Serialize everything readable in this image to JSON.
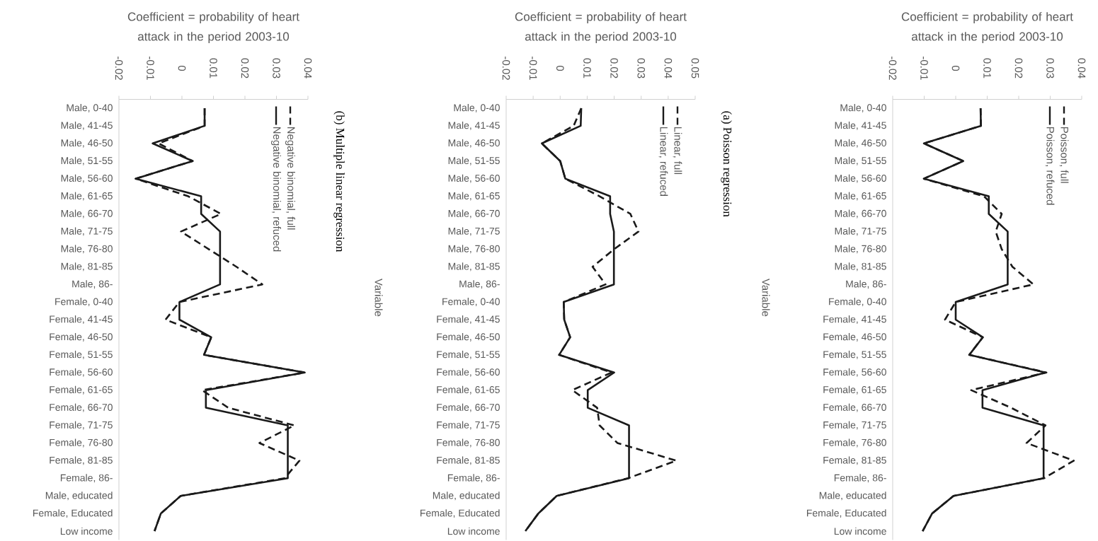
{
  "chart_data": [
    {
      "type": "line",
      "orientation": "horizontal",
      "xlabel": "Coefficient = probability of heart attack in the period 2003-10",
      "ylabel": "Variable",
      "annotations": [
        "(b) Multiple linear regression"
      ],
      "categories": [
        "Male, 0-40",
        "Male, 41-45",
        "Male, 46-50",
        "Male, 51-55",
        "Male, 56-60",
        "Male, 61-65",
        "Male, 66-70",
        "Male, 71-75",
        "Male, 76-80",
        "Male, 81-85",
        "Male, 86-",
        "Female, 0-40",
        "Female, 41-45",
        "Female, 46-50",
        "Female, 51-55",
        "Female, 56-60",
        "Female, 61-65",
        "Female, 66-70",
        "Female, 71-75",
        "Female, 76-80",
        "Female, 81-85",
        "Female, 86-",
        "Male, educated",
        "Female, Educated",
        "Low income"
      ],
      "series": [
        {
          "name": "Negative binomial, full",
          "color": "#1a1a1a",
          "line_style": "dashed",
          "values": [
            0.0072,
            0.0072,
            -0.0074,
            0.0034,
            -0.0147,
            0.002,
            0.0124,
            -0.0003,
            0.0085,
            0.0173,
            0.0255,
            -0.0008,
            -0.0052,
            0.0093,
            0.007,
            0.039,
            0.0064,
            0.0147,
            0.0357,
            0.0246,
            0.0373,
            0.0326,
            -0.0004,
            -0.0067,
            -0.0087
          ]
        },
        {
          "name": "Negative binomial, refuced",
          "color": "#1a1a1a",
          "line_style": "solid",
          "values": [
            0.0072,
            0.0072,
            -0.0093,
            0.0034,
            -0.0147,
            0.0061,
            0.0061,
            0.0121,
            0.0121,
            0.0121,
            0.0121,
            -0.0008,
            -0.0008,
            0.0093,
            0.007,
            0.039,
            0.0076,
            0.0076,
            0.0336,
            0.0336,
            0.0336,
            0.0336,
            -0.0004,
            -0.0067,
            -0.0087
          ]
        }
      ],
      "xlim": [
        -0.02,
        0.04
      ],
      "xticks": [
        -0.02,
        -0.01,
        0,
        0.01,
        0.02,
        0.03,
        0.04
      ],
      "legend": "top right",
      "grid": false
    },
    {
      "type": "line",
      "orientation": "horizontal",
      "xlabel": "Coefficient = probability of heart attack in the period 2003-10",
      "ylabel": "Variable",
      "annotations": [
        "(a) Poisson regression"
      ],
      "categories": [
        "Male, 0-40",
        "Male, 41-45",
        "Male, 46-50",
        "Male, 51-55",
        "Male, 56-60",
        "Male, 61-65",
        "Male, 66-70",
        "Male, 71-75",
        "Male, 76-80",
        "Male, 81-85",
        "Male, 86-",
        "Female, 0-40",
        "Female, 41-45",
        "Female, 46-50",
        "Female, 51-55",
        "Female, 56-60",
        "Female, 61-65",
        "Female, 66-70",
        "Female, 71-75",
        "Female, 76-80",
        "Female, 81-85",
        "Female, 86-",
        "Male, educated",
        "Female, Educated",
        "Low income"
      ],
      "series": [
        {
          "name": "Linear, full",
          "color": "#1a1a1a",
          "line_style": "dashed",
          "values": [
            0.0078,
            0.005,
            -0.0068,
            0.0,
            0.0019,
            0.0146,
            0.026,
            0.029,
            0.02,
            0.012,
            0.0168,
            0.0013,
            0.0015,
            0.0037,
            -0.0004,
            0.019,
            0.0045,
            0.0137,
            0.0146,
            0.0212,
            0.043,
            0.0251,
            -0.0013,
            -0.0081,
            -0.0129
          ]
        },
        {
          "name": "Linear, refuced",
          "color": "#1a1a1a",
          "line_style": "solid",
          "values": [
            0.0078,
            0.0076,
            -0.0068,
            0.0,
            0.0019,
            0.0185,
            0.0185,
            0.0199,
            0.0199,
            0.0199,
            0.0199,
            0.0013,
            0.0015,
            0.0037,
            -0.0004,
            0.02,
            0.0102,
            0.0102,
            0.0255,
            0.0255,
            0.0255,
            0.0255,
            -0.0013,
            -0.0081,
            -0.0129
          ]
        }
      ],
      "xlim": [
        -0.02,
        0.05
      ],
      "xticks": [
        -0.02,
        -0.01,
        0,
        0.01,
        0.02,
        0.03,
        0.04,
        0.05
      ],
      "legend": "top right",
      "grid": false
    },
    {
      "type": "line",
      "orientation": "horizontal",
      "xlabel": "Coefficient = probability of heart attack in the period 2003-10",
      "categories": [
        "Male, 0-40",
        "Male, 41-45",
        "Male, 46-50",
        "Male, 51-55",
        "Male, 56-60",
        "Male, 61-65",
        "Male, 66-70",
        "Male, 71-75",
        "Male, 76-80",
        "Male, 81-85",
        "Male, 86-",
        "Female, 0-40",
        "Female, 41-45",
        "Female, 46-50",
        "Female, 51-55",
        "Female, 56-60",
        "Female, 61-65",
        "Female, 66-70",
        "Female, 71-75",
        "Female, 76-80",
        "Female, 81-85",
        "Female, 86-",
        "Male, educated",
        "Female, Educated",
        "Low income"
      ],
      "series": [
        {
          "name": "Poisson, full",
          "color": "#1a1a1a",
          "line_style": "dashed",
          "values": [
            0.0079,
            0.008,
            -0.0101,
            0.0024,
            -0.0101,
            0.009,
            0.0146,
            0.0127,
            0.0146,
            0.018,
            0.0247,
            0.0,
            -0.0034,
            0.0086,
            0.0043,
            0.0288,
            0.0049,
            0.0176,
            0.0285,
            0.0225,
            0.0375,
            0.028,
            -0.0007,
            -0.0075,
            -0.0105
          ]
        },
        {
          "name": "Poisson, refuced",
          "color": "#1a1a1a",
          "line_style": "solid",
          "values": [
            0.0079,
            0.008,
            -0.0101,
            0.0024,
            -0.0101,
            0.0105,
            0.0105,
            0.0165,
            0.0165,
            0.0165,
            0.0165,
            0.0,
            0.0,
            0.0086,
            0.0043,
            0.0285,
            0.0085,
            0.0085,
            0.0279,
            0.0279,
            0.0279,
            0.0279,
            -0.0007,
            -0.0075,
            -0.0105
          ]
        }
      ],
      "xlim": [
        -0.02,
        0.04
      ],
      "xticks": [
        -0.02,
        -0.01,
        0,
        0.01,
        0.02,
        0.03,
        0.04
      ],
      "legend": "top right",
      "grid": false
    }
  ]
}
